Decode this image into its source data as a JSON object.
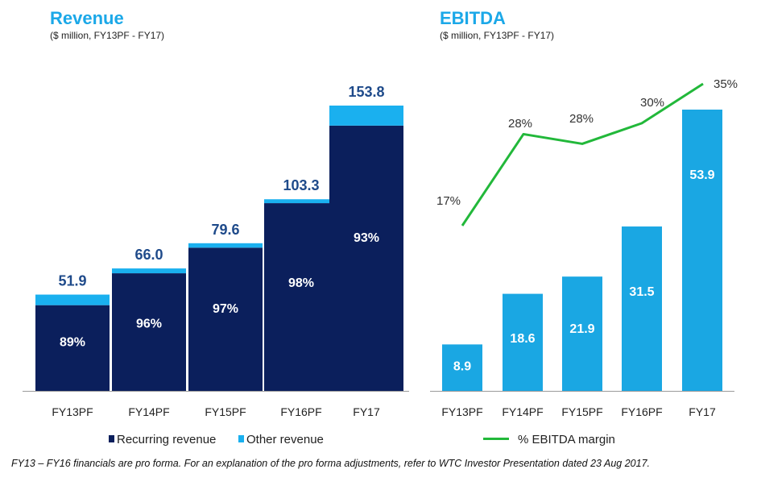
{
  "colors": {
    "title": "#1ba8e8",
    "recurring": "#0b1f5c",
    "other": "#1ab0ef",
    "ebitda_bar": "#1aa7e3",
    "margin_line": "#22b83a",
    "value_label": "#1e4a8a",
    "axis": "#9a9a9a"
  },
  "footnote": "FY13 – FY16 financials are pro forma. For an explanation of the pro forma adjustments, refer to WTC Investor Presentation dated 23 Aug 2017.",
  "chart_data": [
    {
      "type": "bar",
      "stacked": true,
      "title": "Revenue",
      "subtitle": "($ million, FY13PF - FY17)",
      "categories": [
        "FY13PF",
        "FY14PF",
        "FY15PF",
        "FY16PF",
        "FY17"
      ],
      "totals": [
        51.9,
        66.0,
        79.6,
        103.3,
        153.8
      ],
      "total_labels": [
        "51.9",
        "66.0",
        "79.6",
        "103.3",
        "153.8"
      ],
      "recurring_share": [
        0.89,
        0.96,
        0.97,
        0.98,
        0.93
      ],
      "recurring_labels": [
        "89%",
        "96%",
        "97%",
        "98%",
        "93%"
      ],
      "series": [
        {
          "name": "Recurring revenue",
          "values": [
            46.2,
            63.4,
            77.2,
            101.2,
            143.0
          ]
        },
        {
          "name": "Other revenue",
          "values": [
            5.7,
            2.6,
            2.4,
            2.1,
            10.8
          ]
        }
      ],
      "legend": [
        "Recurring revenue",
        "Other revenue"
      ],
      "legend_position": "bottom",
      "ylim": [
        0,
        160
      ]
    },
    {
      "type": "bar+line",
      "title": "EBITDA",
      "subtitle": "($ million, FY13PF - FY17)",
      "categories": [
        "FY13PF",
        "FY14PF",
        "FY15PF",
        "FY16PF",
        "FY17"
      ],
      "bars": [
        8.9,
        18.6,
        21.9,
        31.5,
        53.9
      ],
      "bar_labels": [
        "8.9",
        "18.6",
        "21.9",
        "31.5",
        "53.9"
      ],
      "margin": [
        17,
        28,
        28,
        30,
        35
      ],
      "margin_labels": [
        "17%",
        "28%",
        "28%",
        "30%",
        "35%"
      ],
      "legend": [
        "% EBITDA margin"
      ],
      "legend_position": "bottom",
      "ylim": [
        0,
        60
      ],
      "margin_ylim": [
        0,
        36
      ]
    }
  ]
}
